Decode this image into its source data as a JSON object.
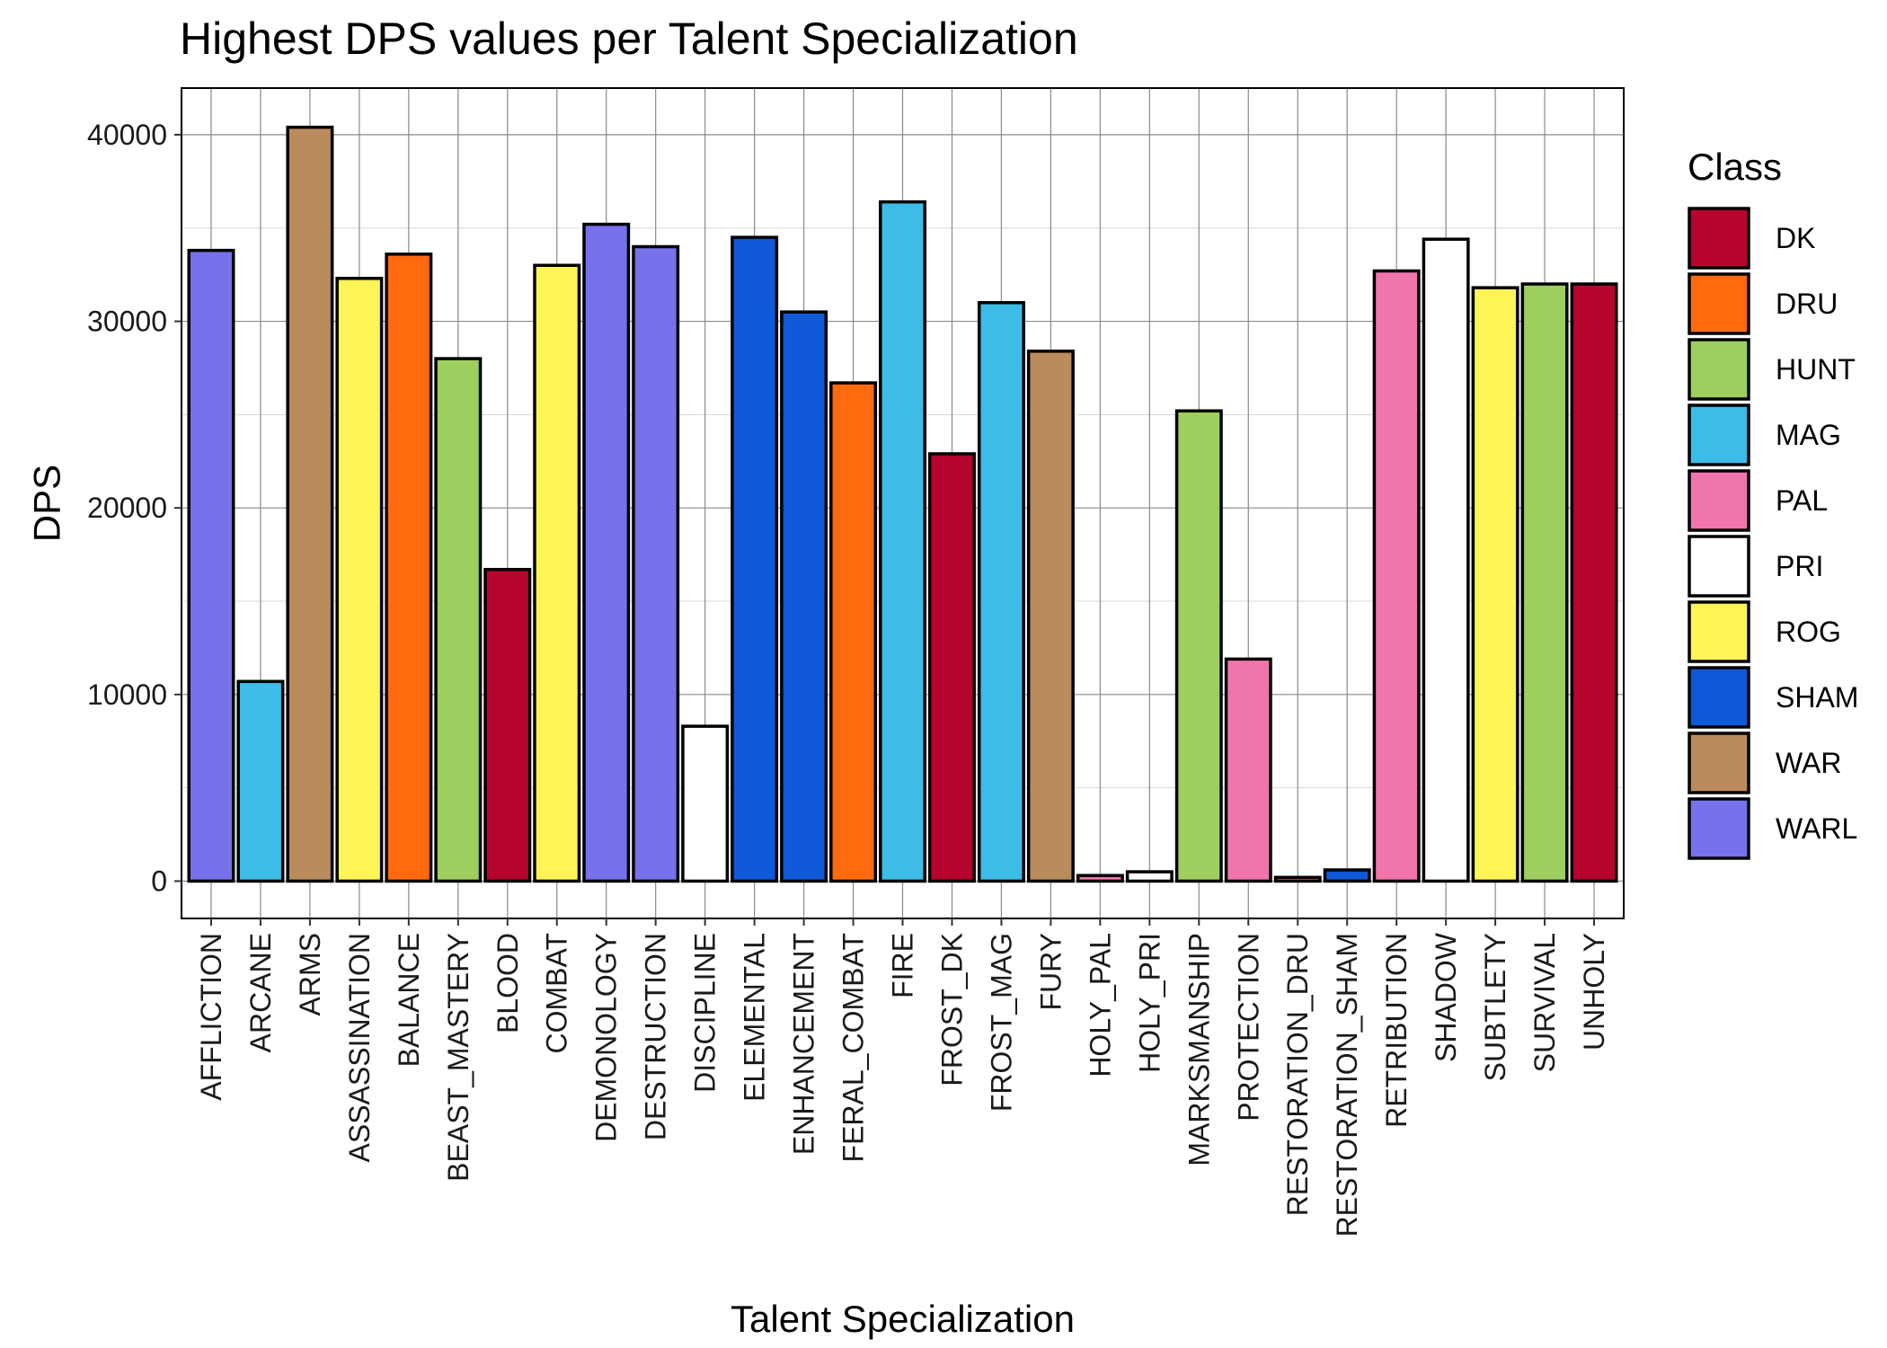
{
  "chart_data": {
    "type": "bar",
    "title": "Highest DPS values per Talent Specialization",
    "xlabel": "Talent Specialization",
    "ylabel": "DPS",
    "ylim": [
      -2000,
      42500
    ],
    "yticks": [
      0,
      10000,
      20000,
      30000,
      40000
    ],
    "grid": true,
    "legend_position": "right",
    "legend_title": "Class",
    "legend": [
      {
        "name": "DK",
        "color": "#B5052E"
      },
      {
        "name": "DRU",
        "color": "#FF6A0F"
      },
      {
        "name": "HUNT",
        "color": "#9ECF5E"
      },
      {
        "name": "MAG",
        "color": "#3CBCE6"
      },
      {
        "name": "PAL",
        "color": "#F075AA"
      },
      {
        "name": "PRI",
        "color": "#FFFFFF"
      },
      {
        "name": "ROG",
        "color": "#FFF455"
      },
      {
        "name": "SHAM",
        "color": "#0E5AD8"
      },
      {
        "name": "WAR",
        "color": "#BA8B5C"
      },
      {
        "name": "WARL",
        "color": "#7771EB"
      }
    ],
    "categories": [
      "AFFLICTION",
      "ARCANE",
      "ARMS",
      "ASSASSINATION",
      "BALANCE",
      "BEAST_MASTERY",
      "BLOOD",
      "COMBAT",
      "DEMONOLOGY",
      "DESTRUCTION",
      "DISCIPLINE",
      "ELEMENTAL",
      "ENHANCEMENT",
      "FERAL_COMBAT",
      "FIRE",
      "FROST_DK",
      "FROST_MAG",
      "FURY",
      "HOLY_PAL",
      "HOLY_PRI",
      "MARKSMANSHIP",
      "PROTECTION",
      "RESTORATION_DRU",
      "RESTORATION_SHAM",
      "RETRIBUTION",
      "SHADOW",
      "SUBTLETY",
      "SURVIVAL",
      "UNHOLY"
    ],
    "values": [
      33800,
      10700,
      40400,
      32300,
      33600,
      28000,
      16700,
      33000,
      35200,
      34000,
      8300,
      34500,
      30500,
      26700,
      36400,
      22900,
      31000,
      28400,
      300,
      500,
      25200,
      11900,
      200,
      600,
      32700,
      34400,
      31800,
      32000,
      32000
    ],
    "classes": [
      "WARL",
      "MAG",
      "WAR",
      "ROG",
      "DRU",
      "HUNT",
      "DK",
      "ROG",
      "WARL",
      "WARL",
      "PRI",
      "SHAM",
      "SHAM",
      "DRU",
      "MAG",
      "DK",
      "MAG",
      "WAR",
      "PAL",
      "PRI",
      "HUNT",
      "PAL",
      "DRU",
      "SHAM",
      "PAL",
      "PRI",
      "ROG",
      "HUNT",
      "DK"
    ]
  }
}
